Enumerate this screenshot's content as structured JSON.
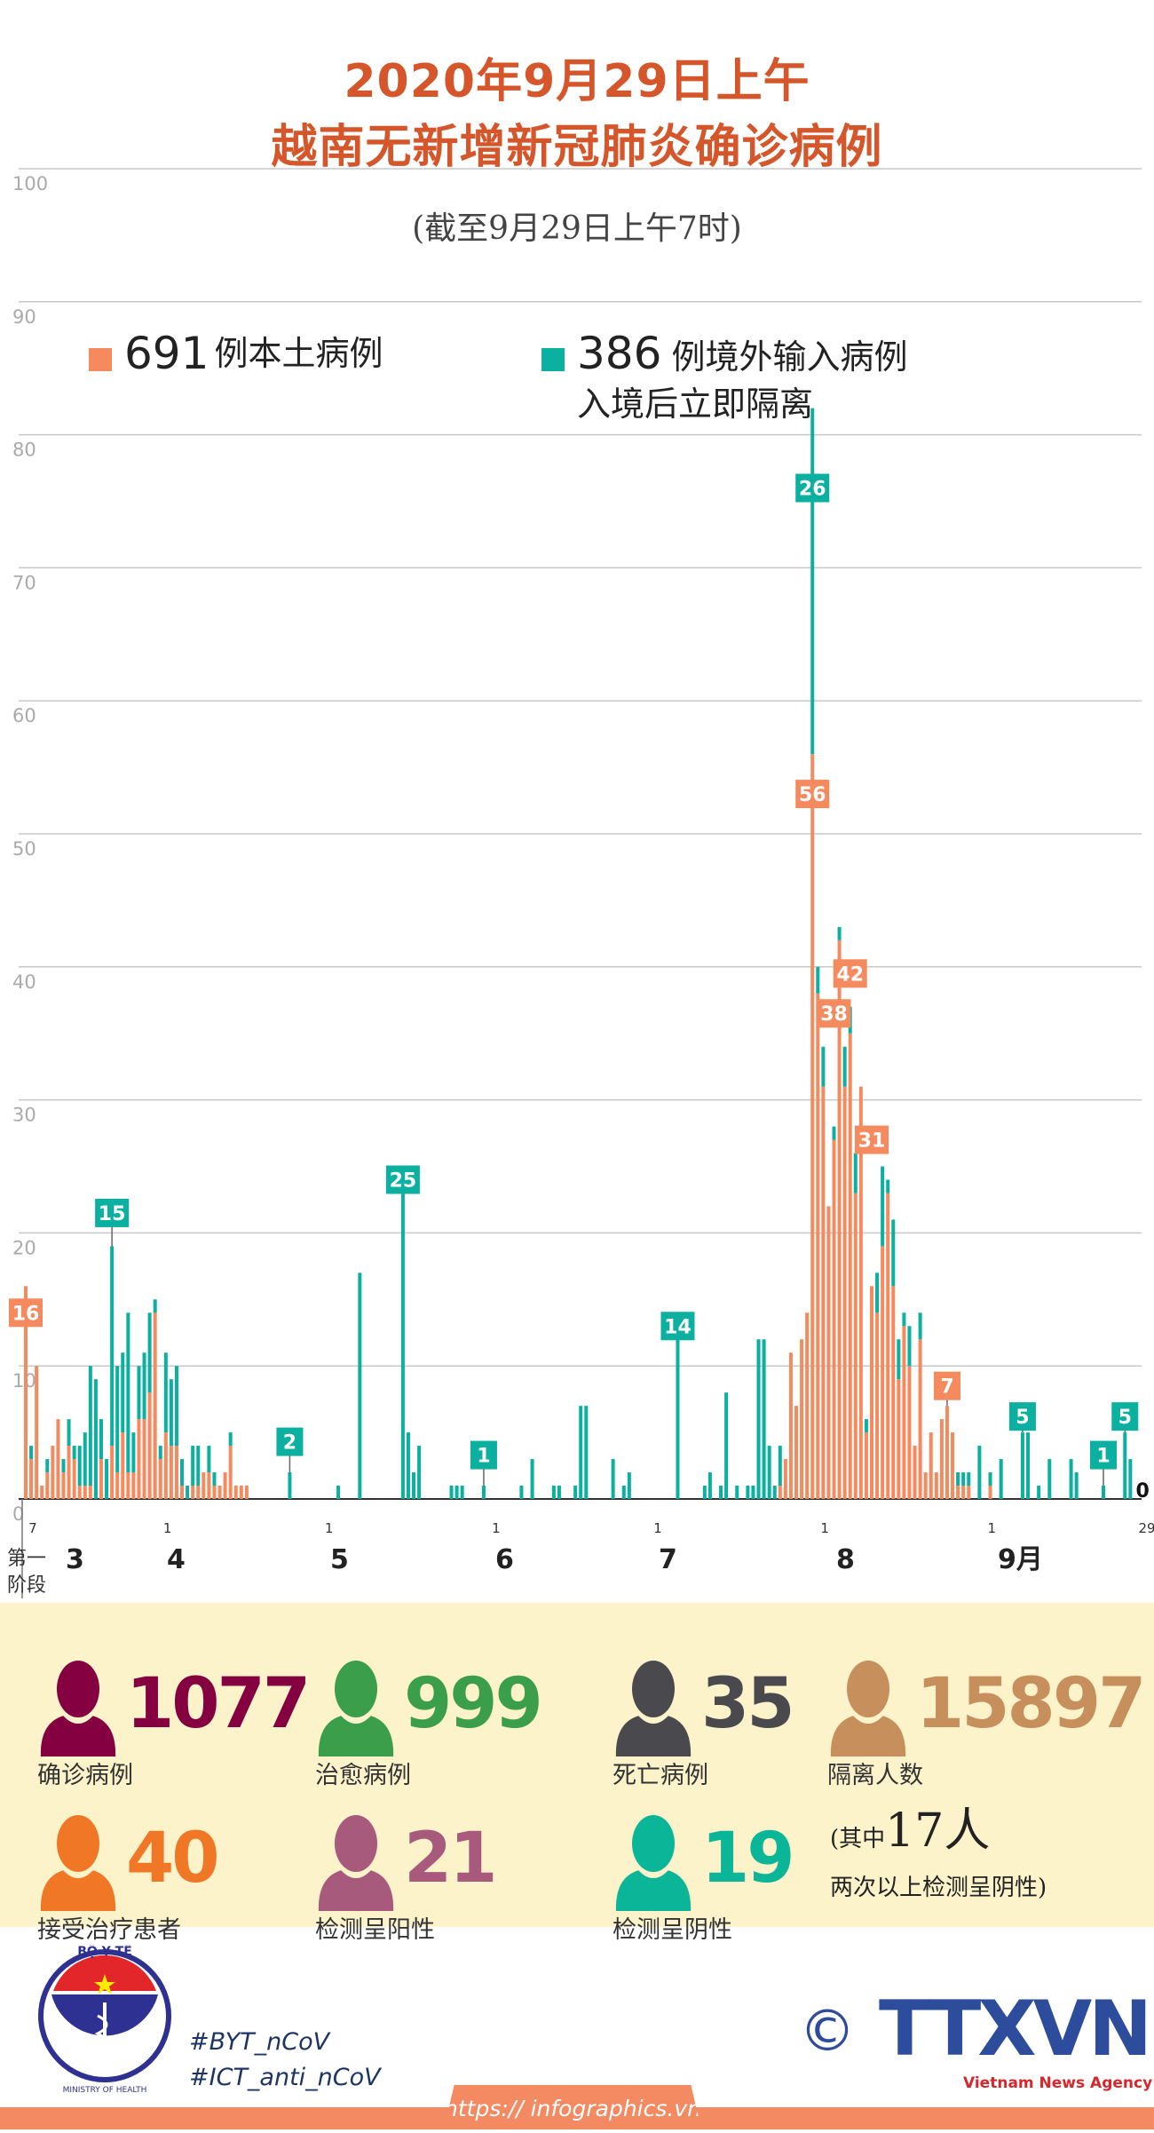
{
  "header": {
    "title_line1": "2020年9月29日上午",
    "title_line2": "越南无新增新冠肺炎确诊病例",
    "subtitle": "(截至9月29日上午7时)"
  },
  "legend": {
    "domestic": {
      "count": "691",
      "label": "例本土病例",
      "color": "#f58a5e"
    },
    "imported": {
      "count": "386",
      "label": "例境外输入病例",
      "note": "入境后立即隔离",
      "color": "#0bb0a0"
    }
  },
  "chart_data": {
    "type": "bar",
    "stacked": true,
    "title": "越南无新增新冠肺炎确诊病例",
    "ylim": [
      0,
      100
    ],
    "yticks": [
      "0",
      "10",
      "20",
      "30",
      "40",
      "50",
      "60",
      "70",
      "80",
      "90",
      "100"
    ],
    "grid": true,
    "x_note": "day index 0 = 第一阶段 (first phase); day 1 = March 7; day 207 = September 29",
    "x_day_ticks": [
      {
        "day": 1,
        "label": "7"
      },
      {
        "day": 26,
        "label": "1"
      },
      {
        "day": 56,
        "label": "1"
      },
      {
        "day": 87,
        "label": "1"
      },
      {
        "day": 117,
        "label": "1"
      },
      {
        "day": 148,
        "label": "1"
      },
      {
        "day": 179,
        "label": "1"
      },
      {
        "day": 207,
        "label": "29"
      }
    ],
    "month_labels": [
      "3",
      "4",
      "5",
      "6",
      "7",
      "8",
      "9月"
    ],
    "first_phase_label": [
      "第一",
      "阶段"
    ],
    "series": [
      {
        "name": "本土病例",
        "color": "#f58a5e"
      },
      {
        "name": "境外输入病例",
        "color": "#0bb0a0"
      }
    ],
    "daily": [
      [
        0,
        16,
        0
      ],
      [
        1,
        3,
        1
      ],
      [
        2,
        10,
        0
      ],
      [
        3,
        1,
        0
      ],
      [
        4,
        2,
        1
      ],
      [
        5,
        4,
        0
      ],
      [
        6,
        6,
        0
      ],
      [
        7,
        2,
        1
      ],
      [
        8,
        4,
        2
      ],
      [
        9,
        3,
        1
      ],
      [
        10,
        1,
        3
      ],
      [
        11,
        1,
        4
      ],
      [
        12,
        1,
        9
      ],
      [
        13,
        0,
        9
      ],
      [
        14,
        3,
        3
      ],
      [
        15,
        0,
        3
      ],
      [
        16,
        4,
        15
      ],
      [
        17,
        2,
        8
      ],
      [
        18,
        5,
        6
      ],
      [
        19,
        2,
        12
      ],
      [
        20,
        2,
        3
      ],
      [
        21,
        6,
        4
      ],
      [
        22,
        6,
        5
      ],
      [
        23,
        8,
        6
      ],
      [
        24,
        14,
        1
      ],
      [
        25,
        3,
        1
      ],
      [
        26,
        5,
        6
      ],
      [
        27,
        4,
        5
      ],
      [
        28,
        4,
        6
      ],
      [
        29,
        1,
        2
      ],
      [
        30,
        0,
        1
      ],
      [
        31,
        1,
        3
      ],
      [
        32,
        1,
        3
      ],
      [
        33,
        2,
        0
      ],
      [
        34,
        2,
        2
      ],
      [
        35,
        1,
        1
      ],
      [
        36,
        1,
        0
      ],
      [
        37,
        2,
        0
      ],
      [
        38,
        4,
        1
      ],
      [
        39,
        1,
        0
      ],
      [
        40,
        1,
        0
      ],
      [
        41,
        1,
        0
      ],
      [
        49,
        0,
        2
      ],
      [
        58,
        0,
        1
      ],
      [
        62,
        0,
        17
      ],
      [
        70,
        0,
        25
      ],
      [
        71,
        0,
        5
      ],
      [
        72,
        0,
        2
      ],
      [
        73,
        0,
        4
      ],
      [
        79,
        0,
        1
      ],
      [
        80,
        0,
        1
      ],
      [
        81,
        0,
        1
      ],
      [
        85,
        0,
        1
      ],
      [
        92,
        0,
        1
      ],
      [
        94,
        0,
        3
      ],
      [
        98,
        0,
        1
      ],
      [
        99,
        0,
        1
      ],
      [
        102,
        0,
        1
      ],
      [
        103,
        0,
        7
      ],
      [
        104,
        0,
        7
      ],
      [
        109,
        0,
        3
      ],
      [
        111,
        0,
        1
      ],
      [
        112,
        0,
        2
      ],
      [
        121,
        0,
        14
      ],
      [
        126,
        0,
        1
      ],
      [
        127,
        0,
        2
      ],
      [
        129,
        0,
        1
      ],
      [
        130,
        0,
        8
      ],
      [
        132,
        0,
        1
      ],
      [
        134,
        0,
        1
      ],
      [
        135,
        0,
        1
      ],
      [
        136,
        0,
        12
      ],
      [
        137,
        0,
        12
      ],
      [
        138,
        0,
        4
      ],
      [
        139,
        0,
        1
      ],
      [
        140,
        1,
        3
      ],
      [
        141,
        3,
        0
      ],
      [
        142,
        11,
        0
      ],
      [
        143,
        7,
        0
      ],
      [
        144,
        12,
        0
      ],
      [
        145,
        14,
        0
      ],
      [
        146,
        56,
        26
      ],
      [
        147,
        38,
        2
      ],
      [
        148,
        31,
        3
      ],
      [
        149,
        22,
        0
      ],
      [
        150,
        27,
        1
      ],
      [
        151,
        42,
        1
      ],
      [
        152,
        31,
        3
      ],
      [
        153,
        35,
        2
      ],
      [
        154,
        23,
        3
      ],
      [
        155,
        31,
        0
      ],
      [
        156,
        5,
        1
      ],
      [
        157,
        16,
        0
      ],
      [
        158,
        14,
        3
      ],
      [
        159,
        19,
        6
      ],
      [
        160,
        23,
        1
      ],
      [
        161,
        16,
        5
      ],
      [
        162,
        9,
        3
      ],
      [
        163,
        13,
        1
      ],
      [
        164,
        10,
        3
      ],
      [
        165,
        4,
        0
      ],
      [
        166,
        12,
        2
      ],
      [
        167,
        2,
        0
      ],
      [
        168,
        5,
        0
      ],
      [
        169,
        2,
        0
      ],
      [
        170,
        6,
        0
      ],
      [
        171,
        7,
        0
      ],
      [
        172,
        5,
        0
      ],
      [
        173,
        1,
        1
      ],
      [
        174,
        1,
        1
      ],
      [
        175,
        1,
        1
      ],
      [
        177,
        0,
        4
      ],
      [
        179,
        1,
        1
      ],
      [
        181,
        0,
        3
      ],
      [
        185,
        0,
        5
      ],
      [
        186,
        0,
        5
      ],
      [
        188,
        0,
        1
      ],
      [
        190,
        0,
        3
      ],
      [
        194,
        0,
        3
      ],
      [
        195,
        0,
        2
      ],
      [
        200,
        0,
        1
      ],
      [
        204,
        0,
        5
      ],
      [
        205,
        0,
        3
      ]
    ],
    "annotations": [
      {
        "day": 0,
        "series": "domestic",
        "text": "16"
      },
      {
        "day": 16,
        "series": "imported",
        "text": "15"
      },
      {
        "day": 49,
        "series": "imported",
        "text": "2"
      },
      {
        "day": 70,
        "series": "imported",
        "text": "25"
      },
      {
        "day": 85,
        "series": "imported",
        "text": "1"
      },
      {
        "day": 121,
        "series": "imported",
        "text": "14"
      },
      {
        "day": 146,
        "series": "imported",
        "text": "26"
      },
      {
        "day": 146,
        "series": "domestic",
        "text": "56"
      },
      {
        "day": 147,
        "series": "domestic",
        "text": "38"
      },
      {
        "day": 151,
        "series": "domestic",
        "text": "42"
      },
      {
        "day": 155,
        "series": "domestic",
        "text": "31"
      },
      {
        "day": 171,
        "series": "domestic",
        "text": "7"
      },
      {
        "day": 185,
        "series": "imported",
        "text": "5"
      },
      {
        "day": 200,
        "series": "imported",
        "text": "1"
      },
      {
        "day": 204,
        "series": "imported",
        "text": "5"
      },
      {
        "day": 207,
        "series": "none",
        "text": "0"
      }
    ]
  },
  "stats": [
    {
      "value": "1077",
      "label": "确诊病例",
      "color": "#850040"
    },
    {
      "value": "999",
      "label": "治愈病例",
      "color": "#3a9e4a"
    },
    {
      "value": "35",
      "label": "死亡病例",
      "color": "#4a4a4e"
    },
    {
      "value": "15897",
      "label": "隔离人数",
      "color": "#c68f5b"
    },
    {
      "value": "40",
      "label": "接受治疗患者",
      "color": "#f07726"
    },
    {
      "value": "21",
      "label": "检测呈阳性",
      "color": "#a85a7c"
    },
    {
      "value": "19",
      "label": "检测呈阴性",
      "color": "#0bb598"
    }
  ],
  "note": {
    "prefix": "(其中",
    "count": "17人",
    "line2": "两次以上检测呈阴性)"
  },
  "footer": {
    "moh_logo_top": "BỘ Y TẾ",
    "moh_logo_bottom": "MINISTRY OF HEALTH",
    "hashtags": [
      "#BYT_nCoV",
      "#ICT_anti_nCoV"
    ],
    "copyright": "©",
    "agency_logo": "TTXVN",
    "agency_name": "Vietnam News Agency",
    "url": "https:// infographics.vn"
  }
}
